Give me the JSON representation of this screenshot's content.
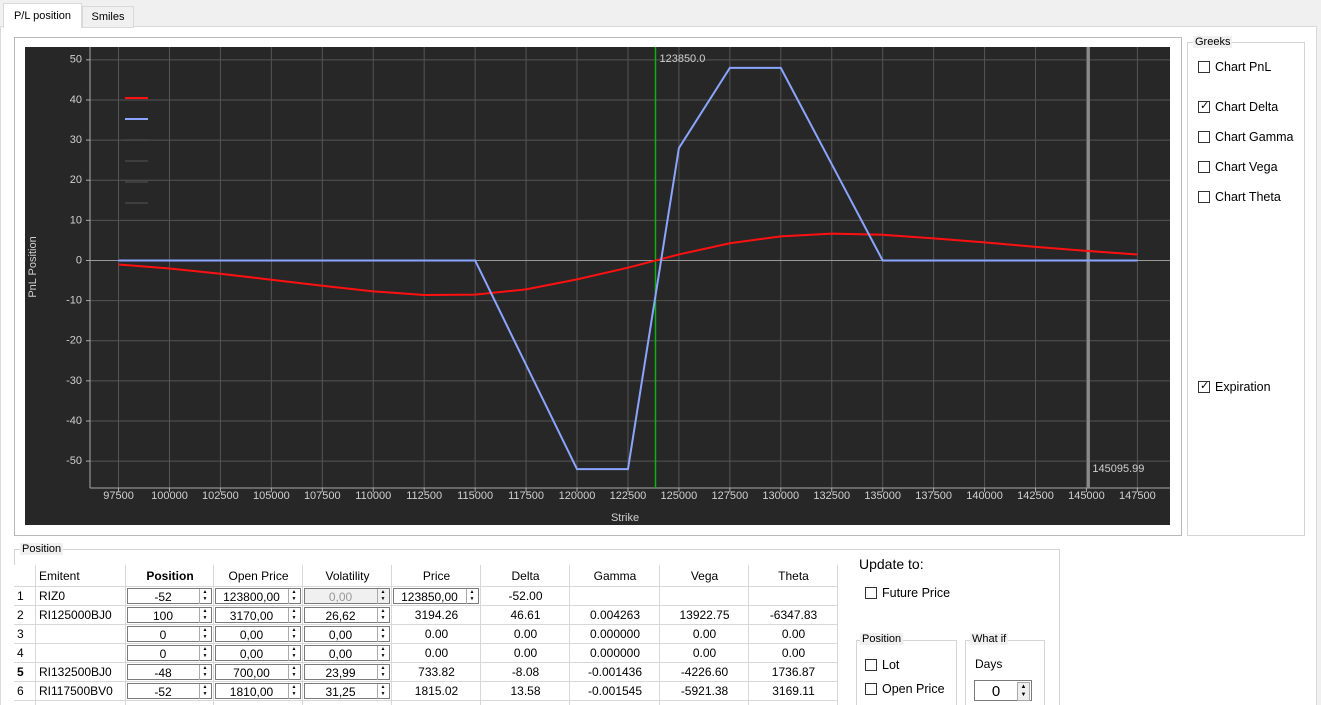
{
  "tabs": [
    "P/L position",
    "Smiles"
  ],
  "chart_data": {
    "type": "line",
    "xlabel": "Strike",
    "ylabel": "PnL Position",
    "x": [
      97500,
      100000,
      102500,
      105000,
      107500,
      110000,
      112500,
      115000,
      117500,
      120000,
      122500,
      125000,
      127500,
      130000,
      132500,
      135000,
      137500,
      140000,
      142500,
      145000,
      147500
    ],
    "series": [
      {
        "color": "#ff1010",
        "values": [
          -1,
          -2,
          -3.3,
          -4.8,
          -6.3,
          -7.7,
          -8.6,
          -8.5,
          -7.2,
          -4.7,
          -1.8,
          1.5,
          4.3,
          6,
          6.7,
          6.4,
          5.5,
          4.5,
          3.4,
          2.4,
          1.5
        ]
      },
      {
        "color": "#8aa4ff",
        "values": [
          0,
          0,
          0,
          0,
          0,
          0,
          0,
          0,
          -26,
          -52,
          -52,
          28,
          48,
          48,
          24,
          0,
          0,
          0,
          0,
          0,
          0
        ]
      }
    ],
    "xlim": [
      96100,
      149100
    ],
    "ylim": [
      -56.7,
      53.2
    ],
    "xticks": [
      97500,
      100000,
      102500,
      105000,
      107500,
      110000,
      112500,
      115000,
      117500,
      120000,
      122500,
      125000,
      127500,
      130000,
      132500,
      135000,
      137500,
      140000,
      142500,
      145000,
      147500
    ],
    "yticks": [
      -50,
      -40,
      -30,
      -20,
      -10,
      0,
      10,
      20,
      30,
      40,
      50
    ],
    "grid": true,
    "vlines": [
      {
        "value": 123850,
        "label": "123850.0",
        "color": "#10b010"
      },
      {
        "value": 145095.99,
        "color": "#8a8a8a"
      }
    ]
  },
  "greeks": {
    "title": "Greeks",
    "options": [
      {
        "label": "Chart PnL",
        "checked": false
      },
      {
        "label": "Chart Delta",
        "checked": true
      },
      {
        "label": "Chart Gamma",
        "checked": false
      },
      {
        "label": "Chart Vega",
        "checked": false
      },
      {
        "label": "Chart Theta",
        "checked": false
      },
      {
        "label": "Expiration",
        "checked": true
      }
    ]
  },
  "position": {
    "title": "Position",
    "headers": [
      null,
      "Emitent",
      "Position",
      "Open Price",
      "Volatility",
      "Price",
      "Delta",
      "Gamma",
      "Vega",
      "Theta"
    ],
    "rows": [
      [
        "1",
        "RIZ0",
        "-52",
        "123800,00",
        "0,00",
        "123850,00",
        "-52.00",
        null,
        null,
        null
      ],
      [
        "2",
        "RI125000BJ0",
        "100",
        "3170,00",
        "26,62",
        "3194.26",
        "46.61",
        "0.004263",
        "13922.75",
        "-6347.83"
      ],
      [
        "3",
        null,
        "0",
        "0,00",
        "0,00",
        "0.00",
        "0.00",
        "0.000000",
        "0.00",
        "0.00"
      ],
      [
        "4",
        null,
        "0",
        "0,00",
        "0,00",
        "0.00",
        "0.00",
        "0.000000",
        "0.00",
        "0.00"
      ],
      [
        "5",
        "RI132500BJ0",
        "-48",
        "700,00",
        "23,99",
        "733.82",
        "-8.08",
        "-0.001436",
        "-4226.60",
        "1736.87"
      ],
      [
        "6",
        "RI117500BV0",
        "-52",
        "1810,00",
        "31,25",
        "1815.02",
        "13.58",
        "-0.001545",
        "-5921.38",
        "3169.11"
      ]
    ]
  },
  "update": {
    "title": "Update to:",
    "future_price": {
      "label": "Future Price",
      "checked": false
    },
    "position_box": {
      "title": "Position",
      "options": [
        {
          "label": "Lot",
          "checked": false
        },
        {
          "label": "Open Price",
          "checked": false
        }
      ]
    },
    "what_if": {
      "title": "What if",
      "days_label": "Days",
      "days": "0"
    }
  }
}
